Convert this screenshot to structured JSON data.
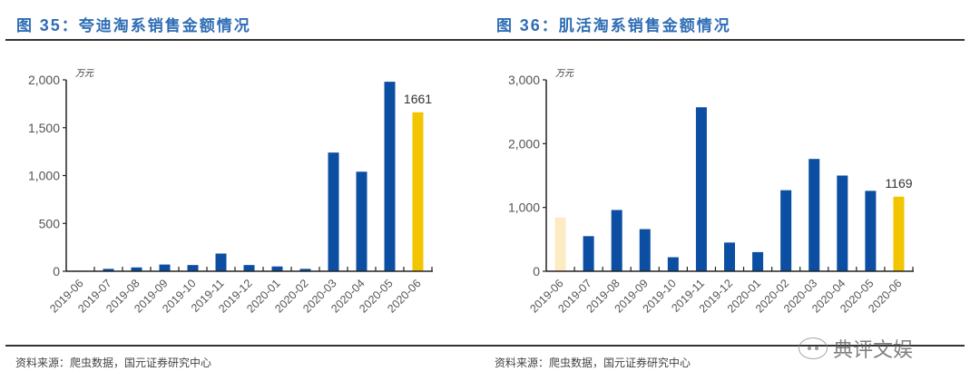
{
  "panels": [
    {
      "title_prefix": "图 ",
      "title_number": "35",
      "title_text": "：夸迪淘系销售金额情况",
      "source": "资料来源：爬虫数据，国元证券研究中心"
    },
    {
      "title_prefix": "图 ",
      "title_number": "36",
      "title_text": "：肌活淘系销售金额情况",
      "source": "资料来源：爬虫数据，国元证券研究中心"
    }
  ],
  "watermark": "典评文娱",
  "colors": {
    "bar_blue": "#0b4ea2",
    "bar_yellow": "#f2c500",
    "bar_light": "#fdebc4",
    "title_blue": "#2e6db5",
    "axis": "#222222",
    "tick_label": "#555555"
  },
  "chart_data": [
    {
      "type": "bar",
      "title": "图 35：夸迪淘系销售金额情况",
      "unit_label": "万元",
      "xlabel": "",
      "ylabel": "万元",
      "ylim": [
        0,
        2000
      ],
      "yticks": [
        0,
        500,
        1000,
        1500,
        2000
      ],
      "ytick_labels": [
        "0",
        "500",
        "1,000",
        "1,500",
        "2,000"
      ],
      "grid": false,
      "categories": [
        "2019-06",
        "2019-07",
        "2019-08",
        "2019-09",
        "2019-10",
        "2019-11",
        "2019-12",
        "2020-01",
        "2020-02",
        "2020-03",
        "2020-04",
        "2020-05",
        "2020-06"
      ],
      "values": [
        10,
        25,
        40,
        70,
        65,
        185,
        65,
        50,
        25,
        1240,
        1040,
        1980,
        1661
      ],
      "bar_colors": [
        "light",
        "blue",
        "blue",
        "blue",
        "blue",
        "blue",
        "blue",
        "blue",
        "blue",
        "blue",
        "blue",
        "blue",
        "yellow"
      ],
      "annotations": [
        {
          "category": "2020-06",
          "text": "1661"
        }
      ],
      "source": "资料来源：爬虫数据，国元证券研究中心"
    },
    {
      "type": "bar",
      "title": "图 36：肌活淘系销售金额情况",
      "unit_label": "万元",
      "xlabel": "",
      "ylabel": "万元",
      "ylim": [
        0,
        3000
      ],
      "yticks": [
        0,
        1000,
        2000,
        3000
      ],
      "ytick_labels": [
        "0",
        "1,000",
        "2,000",
        "3,000"
      ],
      "grid": false,
      "categories": [
        "2019-06",
        "2019-07",
        "2019-08",
        "2019-09",
        "2019-10",
        "2019-11",
        "2019-12",
        "2020-01",
        "2020-02",
        "2020-03",
        "2020-04",
        "2020-05",
        "2020-06"
      ],
      "values": [
        840,
        550,
        960,
        660,
        220,
        2570,
        450,
        300,
        1270,
        1760,
        1500,
        1260,
        1169
      ],
      "bar_colors": [
        "light",
        "blue",
        "blue",
        "blue",
        "blue",
        "blue",
        "blue",
        "blue",
        "blue",
        "blue",
        "blue",
        "blue",
        "yellow"
      ],
      "annotations": [
        {
          "category": "2020-06",
          "text": "1169"
        }
      ],
      "source": "资料来源：爬虫数据，国元证券研究中心"
    }
  ]
}
